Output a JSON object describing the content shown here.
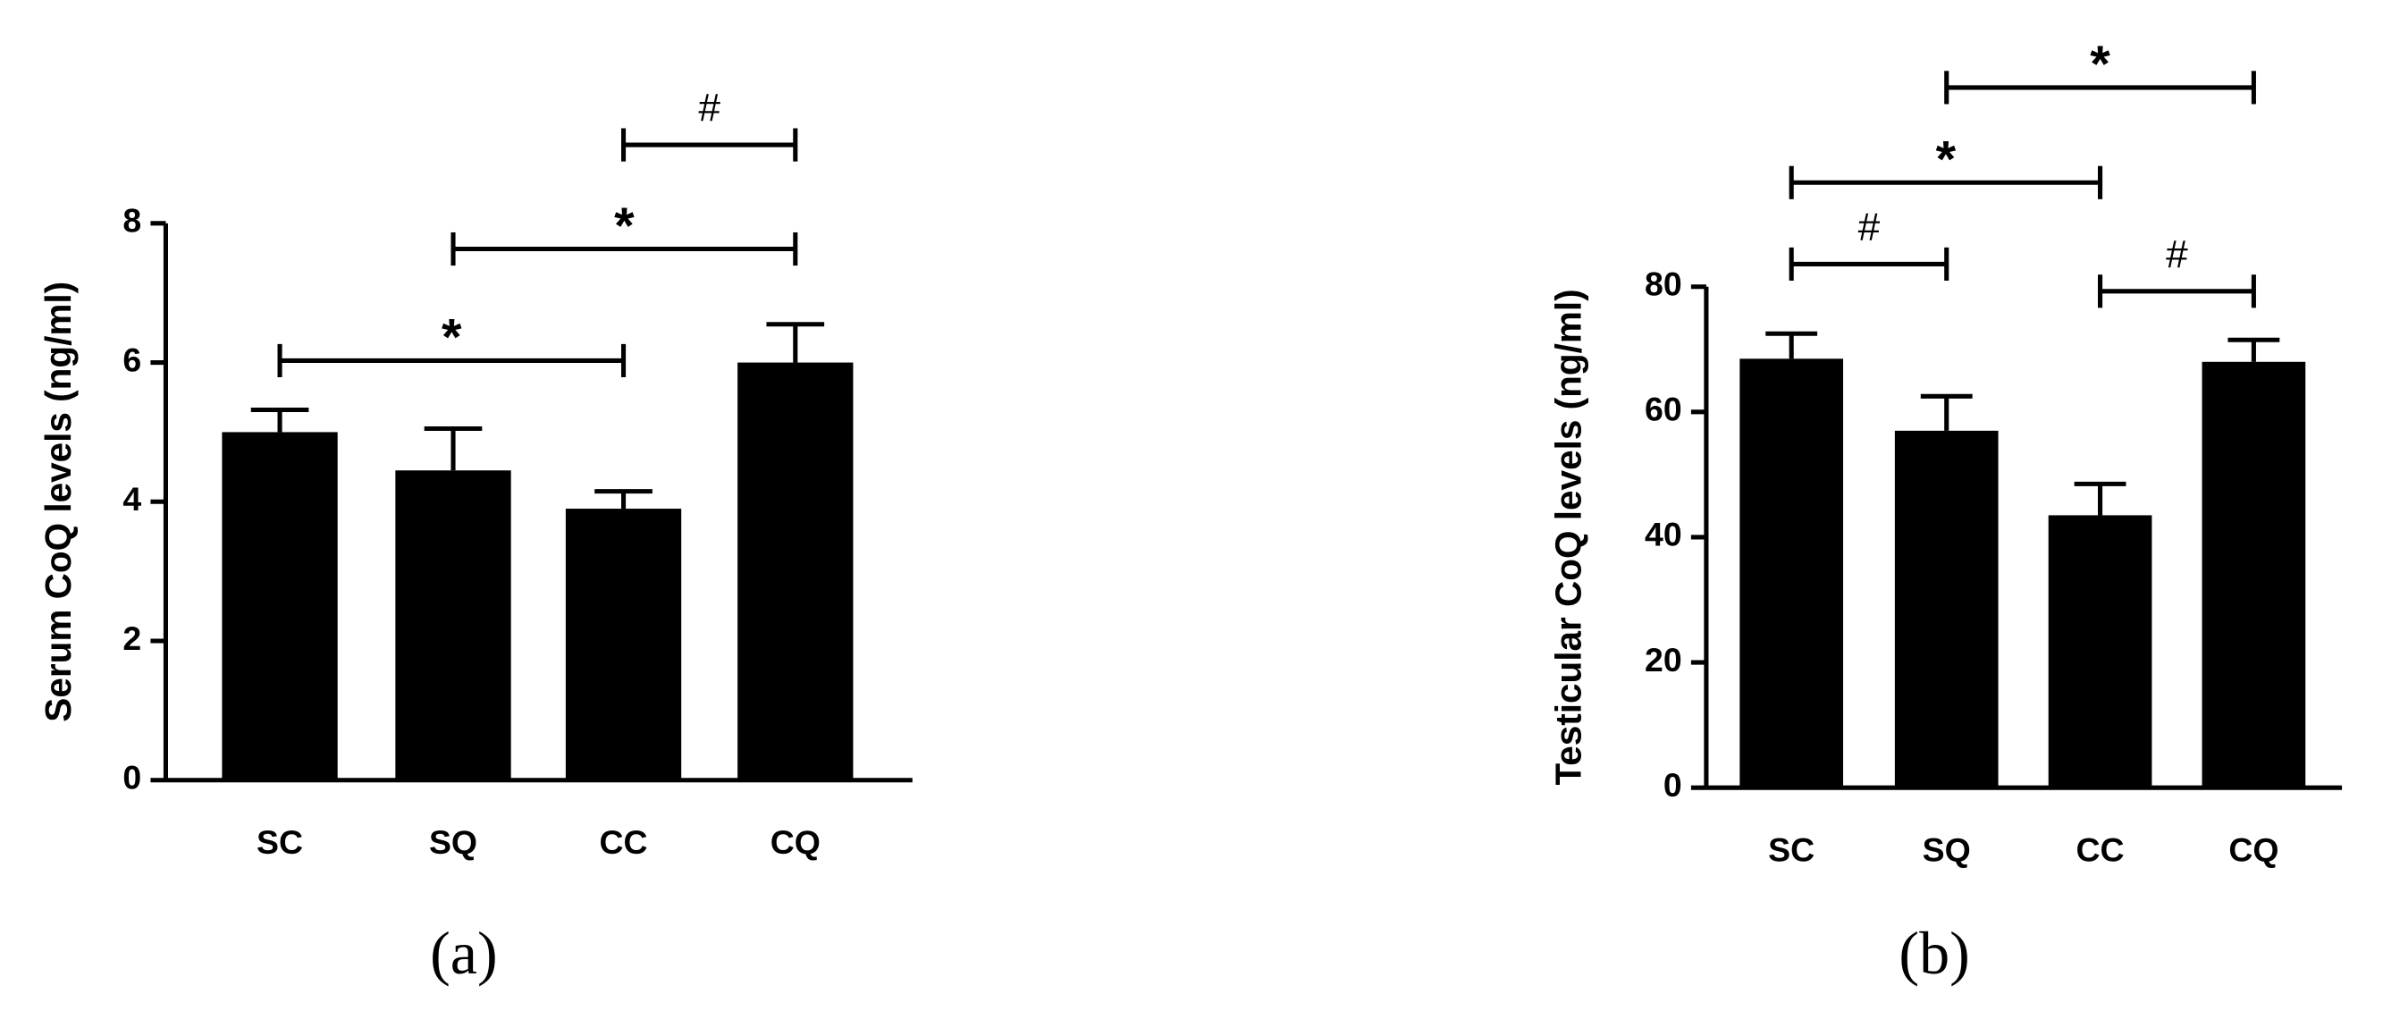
{
  "chart_data": [
    {
      "type": "bar",
      "caption": "(a)",
      "ylabel": "Serum CoQ levels (ng/ml)",
      "categories": [
        "SC",
        "SQ",
        "CC",
        "CQ"
      ],
      "values": [
        5.0,
        4.45,
        3.9,
        6.0
      ],
      "errors": [
        0.32,
        0.6,
        0.25,
        0.55
      ],
      "color": "#000000",
      "ylim": [
        0,
        8
      ],
      "yticks": [
        0,
        2,
        4,
        6,
        8
      ],
      "annotations": [
        {
          "label": "*",
          "between": [
            "SC",
            "CC"
          ]
        },
        {
          "label": "*",
          "between": [
            "SQ",
            "CQ"
          ]
        },
        {
          "label": "#",
          "between": [
            "CC",
            "CQ"
          ]
        }
      ]
    },
    {
      "type": "bar",
      "caption": "(b)",
      "ylabel": "Testicular CoQ levels (ng/ml)",
      "categories": [
        "SC",
        "SQ",
        "CC",
        "CQ"
      ],
      "values": [
        68.5,
        57,
        43.5,
        68
      ],
      "errors": [
        4,
        5.5,
        5,
        3.5
      ],
      "color": "#000000",
      "ylim": [
        0,
        80
      ],
      "yticks": [
        0,
        20,
        40,
        60,
        80
      ],
      "annotations": [
        {
          "label": "#",
          "between": [
            "SC",
            "SQ"
          ]
        },
        {
          "label": "#",
          "between": [
            "CC",
            "CQ"
          ]
        },
        {
          "label": "*",
          "between": [
            "SC",
            "CC"
          ]
        },
        {
          "label": "*",
          "between": [
            "SQ",
            "CQ"
          ]
        }
      ]
    }
  ]
}
